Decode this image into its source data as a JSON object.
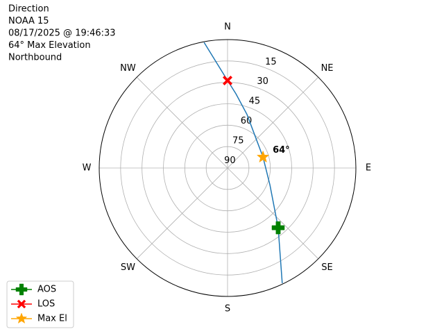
{
  "chart_data": {
    "type": "polar",
    "title": [
      "Direction",
      "NOAA 15",
      "08/17/2025 @ 19:46:33",
      "64° Max Elevation",
      "Northbound"
    ],
    "xlim": [
      0,
      360
    ],
    "xticks": [
      {
        "value": 0,
        "label": "N"
      },
      {
        "value": 45,
        "label": "NE"
      },
      {
        "value": 90,
        "label": "E"
      },
      {
        "value": 135,
        "label": "SE"
      },
      {
        "value": 180,
        "label": "S"
      },
      {
        "value": 225,
        "label": "SW"
      },
      {
        "value": 270,
        "label": "W"
      },
      {
        "value": 315,
        "label": "NW"
      }
    ],
    "ylim": [
      90,
      0
    ],
    "yticks": [
      90,
      75,
      60,
      45,
      30,
      15
    ],
    "grid": true,
    "series": [
      {
        "color": "#1f77b4",
        "x": [
          154.6,
          139.7,
          111.5,
          72.9,
          20,
          6.4,
          0,
          349.4
        ],
        "values": [
          0.6,
          35.1,
          58.1,
          64,
          50.1,
          37.6,
          28.7,
          0.5
        ]
      },
      {
        "name": "AOS",
        "color": "green",
        "marker": "plus",
        "x": [
          139.7
        ],
        "values": [
          35.1
        ]
      },
      {
        "name": "LOS",
        "color": "red",
        "marker": "x",
        "x": [
          0
        ],
        "values": [
          28.7
        ]
      },
      {
        "name": "Max El",
        "color": "orange",
        "marker": "star",
        "x": [
          72.9
        ],
        "values": [
          64
        ]
      }
    ],
    "annotations": [
      {
        "text": "64°"
      }
    ],
    "legend": "lower left"
  }
}
